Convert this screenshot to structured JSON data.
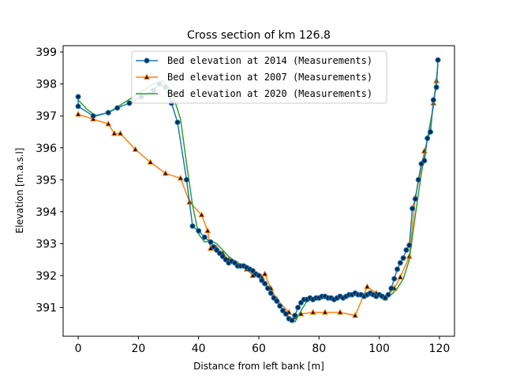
{
  "chart_data": {
    "type": "line",
    "title": "Cross section of km 126.8",
    "xlabel": "Distance from left bank [m]",
    "ylabel": "Elevation [m.a.s.l]",
    "xlim": [
      -5,
      125
    ],
    "ylim": [
      390.1,
      399.2
    ],
    "xticks": [
      0,
      20,
      40,
      60,
      80,
      100,
      120
    ],
    "yticks": [
      391,
      392,
      393,
      394,
      395,
      396,
      397,
      398,
      399
    ],
    "legend": "top-center",
    "grid": false,
    "series": [
      {
        "name": "Bed elevation at 2014 (Measurements)",
        "color": "#1f77b4",
        "marker": "circle",
        "x": [
          0,
          0,
          5,
          10,
          13,
          17,
          21,
          25,
          27,
          29,
          31,
          33,
          36,
          38,
          40,
          42,
          44,
          45,
          46,
          47,
          48,
          49,
          50,
          51,
          52,
          53,
          54,
          55,
          56,
          57,
          58,
          59,
          60,
          61,
          62,
          63,
          64,
          65,
          66,
          67,
          68,
          69,
          70,
          71,
          72,
          73,
          74,
          75,
          76,
          77,
          78,
          79,
          80,
          81,
          82,
          83,
          84,
          85,
          86,
          87,
          88,
          89,
          90,
          91,
          92,
          93,
          94,
          95,
          96,
          97,
          98,
          99,
          100,
          101,
          102,
          103,
          104,
          105,
          106,
          107,
          108,
          109,
          110,
          111,
          112,
          113,
          114,
          115,
          116,
          117,
          118,
          119,
          119.5
        ],
        "values": [
          397.6,
          397.3,
          397.0,
          397.1,
          397.25,
          397.4,
          397.6,
          397.8,
          398.0,
          397.9,
          397.4,
          396.8,
          395.0,
          393.55,
          393.4,
          393.2,
          393.05,
          392.9,
          392.8,
          392.7,
          392.6,
          392.5,
          392.4,
          392.45,
          392.4,
          392.3,
          392.3,
          392.3,
          392.25,
          392.2,
          392.15,
          392.05,
          392.0,
          391.85,
          391.75,
          391.6,
          391.45,
          391.3,
          391.2,
          391.05,
          390.9,
          390.8,
          390.65,
          390.6,
          390.75,
          391.0,
          391.15,
          391.25,
          391.25,
          391.3,
          391.25,
          391.3,
          391.3,
          391.35,
          391.35,
          391.3,
          391.3,
          391.25,
          391.3,
          391.35,
          391.3,
          391.35,
          391.4,
          391.4,
          391.45,
          391.4,
          391.4,
          391.35,
          391.4,
          391.45,
          391.4,
          391.35,
          391.4,
          391.35,
          391.3,
          391.4,
          391.6,
          391.9,
          392.2,
          392.4,
          392.55,
          392.8,
          392.95,
          394.1,
          394.4,
          395.0,
          395.5,
          395.6,
          396.3,
          396.5,
          397.5,
          397.9,
          398.75
        ]
      },
      {
        "name": "Bed elevation at 2007 (Measurements)",
        "color": "#ff7f0e",
        "marker": "triangle",
        "x": [
          0,
          5,
          10,
          12,
          14,
          19,
          24,
          29,
          34,
          37,
          41,
          43,
          44,
          46,
          48,
          50,
          53,
          56,
          58,
          61,
          62,
          64,
          66,
          70,
          72,
          74,
          78,
          82,
          87,
          92,
          96,
          99,
          102,
          105,
          107,
          110,
          112,
          115,
          117,
          118,
          119
        ],
        "values": [
          397.05,
          396.9,
          396.75,
          396.45,
          396.45,
          395.95,
          395.55,
          395.2,
          395.05,
          394.3,
          393.9,
          393.4,
          392.85,
          392.85,
          392.7,
          392.5,
          392.35,
          392.2,
          392.0,
          391.95,
          392.05,
          391.6,
          391.25,
          390.85,
          390.7,
          390.8,
          390.85,
          390.85,
          390.85,
          390.75,
          391.65,
          391.45,
          391.3,
          391.6,
          391.95,
          392.6,
          394.45,
          395.9,
          396.55,
          397.4,
          398.1
        ]
      },
      {
        "name": "Bed elevation at 2020 (Measurements)",
        "color": "#2ca02c",
        "marker": "none",
        "x": [
          0,
          1,
          3,
          6,
          10,
          15,
          20,
          25,
          28,
          30,
          32,
          34,
          36,
          38,
          40,
          42,
          44,
          46,
          48,
          50,
          52,
          54,
          56,
          58,
          60,
          62,
          64,
          66,
          68,
          70,
          72,
          74,
          76,
          78,
          80,
          82,
          84,
          86,
          88,
          90,
          92,
          94,
          96,
          98,
          100,
          102,
          104,
          106,
          108,
          110,
          112,
          114,
          116,
          118,
          119.5
        ],
        "values": [
          397.5,
          397.4,
          397.2,
          397.0,
          397.1,
          397.4,
          397.7,
          398.0,
          398.1,
          397.9,
          397.5,
          396.9,
          395.5,
          394.2,
          393.3,
          393.05,
          393.1,
          393.0,
          392.8,
          392.6,
          392.45,
          392.35,
          392.3,
          392.15,
          392.0,
          391.8,
          391.5,
          391.2,
          390.9,
          390.7,
          390.55,
          390.9,
          391.2,
          391.25,
          391.25,
          391.3,
          391.3,
          391.3,
          391.35,
          391.35,
          391.4,
          391.4,
          391.35,
          391.4,
          391.4,
          391.35,
          391.4,
          391.6,
          391.9,
          392.5,
          393.9,
          395.2,
          396.3,
          397.3,
          398.6
        ]
      }
    ]
  }
}
